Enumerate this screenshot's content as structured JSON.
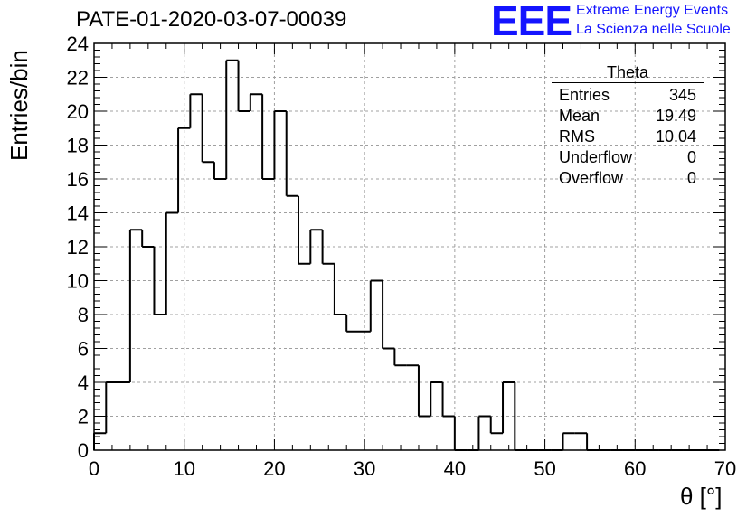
{
  "header": {
    "title": "PATE-01-2020-03-07-00039",
    "logo_text": "EEE",
    "tagline1": "Extreme Energy Events",
    "tagline2": "La Scienza nelle Scuole",
    "logo_color": "#1414ff"
  },
  "stats": {
    "title": "Theta",
    "rows": [
      {
        "label": "Entries",
        "value": "345"
      },
      {
        "label": "Mean",
        "value": "19.49"
      },
      {
        "label": "RMS",
        "value": "10.04"
      },
      {
        "label": "Underflow",
        "value": "0"
      },
      {
        "label": "Overflow",
        "value": "0"
      }
    ]
  },
  "chart_data": {
    "type": "histogram",
    "xlabel": "θ [°]",
    "ylabel": "Entries/bin",
    "xlim": [
      0,
      70
    ],
    "ylim": [
      0,
      24
    ],
    "x_ticks": [
      0,
      10,
      20,
      30,
      40,
      50,
      60,
      70
    ],
    "y_ticks": [
      0,
      2,
      4,
      6,
      8,
      10,
      12,
      14,
      16,
      18,
      20,
      22,
      24
    ],
    "grid": true,
    "bin_width": 1.3333,
    "bin_start": 0,
    "values": [
      1,
      4,
      4,
      13,
      12,
      8,
      14,
      19,
      21,
      17,
      16,
      23,
      20,
      21,
      16,
      20,
      15,
      11,
      13,
      11,
      8,
      7,
      7,
      10,
      6,
      5,
      5,
      2,
      4,
      2,
      0,
      0,
      2,
      1,
      4,
      0,
      0,
      0,
      0,
      1,
      1,
      0,
      0,
      0,
      0,
      0,
      0,
      0,
      0,
      0,
      0,
      0
    ]
  }
}
